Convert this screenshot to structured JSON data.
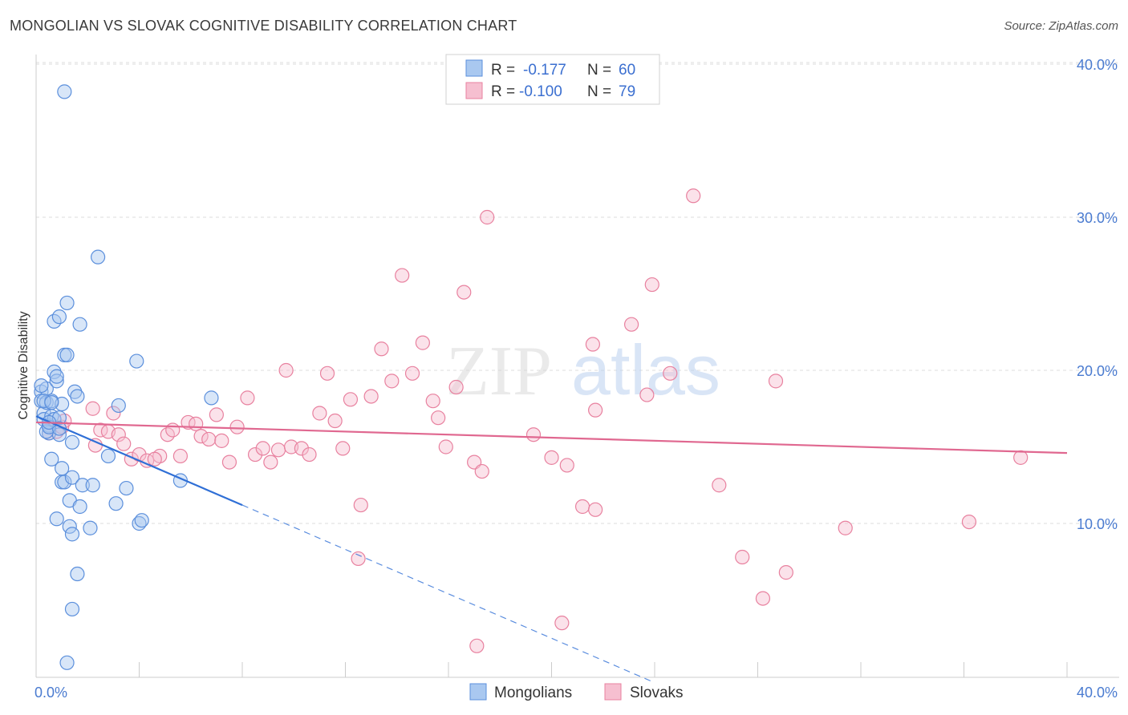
{
  "header": {
    "title": "MONGOLIAN VS SLOVAK COGNITIVE DISABILITY CORRELATION CHART",
    "source": "Source: ZipAtlas.com"
  },
  "watermark": {
    "zip": "ZIP",
    "atlas": "atlas"
  },
  "colors": {
    "blue_fill": "#a9c8f0",
    "blue_stroke": "#5b8fdc",
    "blue_line": "#2f6fd6",
    "pink_fill": "#f6bfd0",
    "pink_stroke": "#e8819f",
    "pink_line": "#e06890",
    "grid": "#dddddd",
    "tick_text": "#4a7bd0"
  },
  "legend": {
    "rows": [
      {
        "r_label": "R =",
        "r_value": "-0.177",
        "n_label": "N =",
        "n_value": "60"
      },
      {
        "r_label": "R =",
        "r_value": "-0.100",
        "n_label": "N =",
        "n_value": "79"
      }
    ]
  },
  "chart_data": {
    "type": "scatter",
    "title": "MONGOLIAN VS SLOVAK COGNITIVE DISABILITY CORRELATION CHART",
    "xlabel": "",
    "ylabel": "Cognitive Disability",
    "xlim": [
      0,
      40
    ],
    "ylim": [
      0,
      40
    ],
    "x_tick_labels": [
      "0.0%",
      "40.0%"
    ],
    "y_ticks": [
      10,
      20,
      30,
      40
    ],
    "y_tick_labels": [
      "10.0%",
      "20.0%",
      "30.0%",
      "40.0%"
    ],
    "x_minor_ticks": [
      0,
      4,
      8,
      12,
      16,
      20,
      24,
      28,
      32,
      36,
      40
    ],
    "series": [
      {
        "name": "Mongolians",
        "r": -0.177,
        "n": 60,
        "trend": {
          "x0": 0.0,
          "y0": 17.0,
          "x1": 8.0,
          "y1": 11.2,
          "dashed_to_x": 24.0
        },
        "points": [
          [
            0.2,
            18.6
          ],
          [
            0.2,
            18.0
          ],
          [
            0.3,
            17.2
          ],
          [
            0.3,
            16.8
          ],
          [
            0.4,
            18.8
          ],
          [
            0.4,
            17.9
          ],
          [
            0.5,
            16.4
          ],
          [
            0.5,
            15.9
          ],
          [
            0.6,
            17.0
          ],
          [
            0.6,
            18.0
          ],
          [
            0.7,
            19.9
          ],
          [
            0.7,
            16.8
          ],
          [
            0.8,
            19.3
          ],
          [
            0.8,
            19.6
          ],
          [
            0.9,
            16.9
          ],
          [
            0.9,
            15.8
          ],
          [
            0.6,
            14.2
          ],
          [
            0.7,
            23.2
          ],
          [
            0.9,
            23.5
          ],
          [
            1.0,
            17.8
          ],
          [
            1.0,
            13.6
          ],
          [
            1.0,
            12.7
          ],
          [
            1.1,
            21.0
          ],
          [
            1.1,
            12.7
          ],
          [
            1.2,
            24.4
          ],
          [
            1.2,
            21.0
          ],
          [
            1.3,
            11.5
          ],
          [
            1.3,
            9.8
          ],
          [
            1.4,
            15.3
          ],
          [
            1.4,
            9.3
          ],
          [
            1.4,
            13.0
          ],
          [
            1.5,
            18.6
          ],
          [
            1.6,
            18.3
          ],
          [
            1.6,
            6.7
          ],
          [
            1.7,
            23.0
          ],
          [
            1.7,
            11.1
          ],
          [
            1.8,
            12.5
          ],
          [
            2.1,
            9.7
          ],
          [
            2.2,
            12.5
          ],
          [
            2.4,
            27.4
          ],
          [
            2.8,
            14.4
          ],
          [
            3.1,
            11.3
          ],
          [
            3.2,
            17.7
          ],
          [
            3.5,
            12.3
          ],
          [
            3.9,
            20.6
          ],
          [
            4.0,
            10.0
          ],
          [
            4.1,
            10.2
          ],
          [
            5.6,
            12.8
          ],
          [
            6.8,
            18.2
          ],
          [
            1.1,
            38.2
          ],
          [
            1.4,
            4.4
          ],
          [
            1.2,
            0.9
          ],
          [
            0.4,
            16.0
          ],
          [
            0.5,
            16.3
          ],
          [
            0.8,
            10.3
          ],
          [
            0.3,
            18.0
          ],
          [
            0.6,
            17.9
          ],
          [
            0.2,
            19.0
          ],
          [
            0.9,
            16.2
          ],
          [
            0.5,
            16.6
          ]
        ]
      },
      {
        "name": "Slovaks",
        "r": -0.1,
        "n": 79,
        "trend": {
          "x0": 0.0,
          "y0": 16.6,
          "x1": 40.0,
          "y1": 14.6
        },
        "points": [
          [
            0.8,
            16.0
          ],
          [
            1.0,
            16.3
          ],
          [
            1.1,
            16.7
          ],
          [
            2.2,
            17.5
          ],
          [
            2.5,
            16.1
          ],
          [
            2.3,
            15.1
          ],
          [
            2.8,
            16.0
          ],
          [
            3.0,
            17.2
          ],
          [
            3.2,
            15.8
          ],
          [
            3.4,
            15.2
          ],
          [
            3.7,
            14.2
          ],
          [
            4.0,
            14.5
          ],
          [
            4.3,
            14.1
          ],
          [
            4.8,
            14.4
          ],
          [
            5.1,
            15.8
          ],
          [
            5.3,
            16.1
          ],
          [
            5.6,
            14.4
          ],
          [
            5.9,
            16.6
          ],
          [
            6.2,
            16.5
          ],
          [
            6.4,
            15.7
          ],
          [
            6.7,
            15.5
          ],
          [
            7.0,
            17.1
          ],
          [
            7.2,
            15.4
          ],
          [
            7.5,
            14.0
          ],
          [
            7.8,
            16.3
          ],
          [
            8.2,
            18.2
          ],
          [
            8.5,
            14.5
          ],
          [
            8.8,
            14.9
          ],
          [
            9.1,
            14.0
          ],
          [
            9.4,
            14.8
          ],
          [
            9.7,
            20.0
          ],
          [
            9.9,
            15.0
          ],
          [
            10.3,
            14.9
          ],
          [
            10.6,
            14.5
          ],
          [
            11.0,
            17.2
          ],
          [
            11.3,
            19.8
          ],
          [
            11.6,
            16.7
          ],
          [
            11.9,
            14.9
          ],
          [
            12.2,
            18.1
          ],
          [
            12.6,
            11.2
          ],
          [
            13.0,
            18.3
          ],
          [
            13.4,
            21.4
          ],
          [
            13.8,
            19.3
          ],
          [
            14.2,
            26.2
          ],
          [
            14.6,
            19.8
          ],
          [
            15.0,
            21.8
          ],
          [
            15.4,
            18.0
          ],
          [
            15.6,
            16.9
          ],
          [
            15.9,
            15.0
          ],
          [
            16.3,
            18.9
          ],
          [
            16.6,
            25.1
          ],
          [
            17.0,
            14.0
          ],
          [
            17.3,
            13.4
          ],
          [
            17.5,
            30.0
          ],
          [
            17.1,
            2.0
          ],
          [
            12.5,
            7.7
          ],
          [
            19.3,
            15.8
          ],
          [
            20.0,
            14.3
          ],
          [
            20.4,
            3.5
          ],
          [
            20.6,
            13.8
          ],
          [
            21.2,
            11.1
          ],
          [
            21.6,
            21.7
          ],
          [
            21.7,
            17.4
          ],
          [
            21.7,
            10.9
          ],
          [
            23.1,
            23.0
          ],
          [
            23.7,
            18.4
          ],
          [
            23.9,
            25.6
          ],
          [
            24.6,
            19.8
          ],
          [
            25.5,
            31.4
          ],
          [
            26.5,
            12.5
          ],
          [
            27.4,
            7.8
          ],
          [
            28.2,
            5.1
          ],
          [
            28.7,
            19.3
          ],
          [
            29.1,
            6.8
          ],
          [
            31.4,
            9.7
          ],
          [
            36.2,
            10.1
          ],
          [
            38.2,
            14.3
          ],
          [
            0.5,
            15.9
          ],
          [
            4.6,
            14.2
          ]
        ]
      }
    ]
  },
  "bottom_legend": {
    "items": [
      "Mongolians",
      "Slovaks"
    ]
  }
}
